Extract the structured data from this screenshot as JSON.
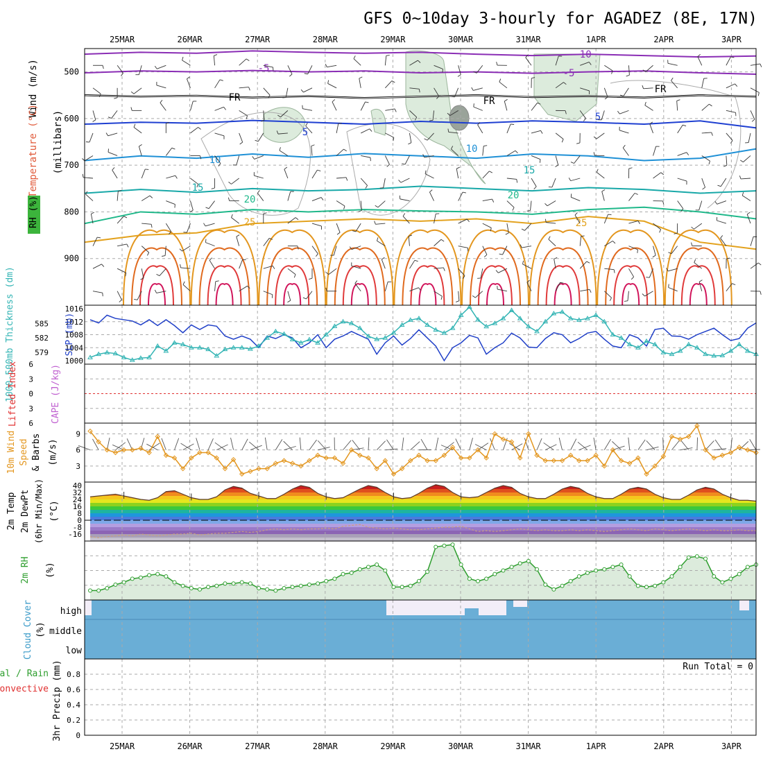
{
  "title": "GFS 0~10day 3-hourly for AGADEZ (8E, 17N)",
  "dates": [
    "25MAR",
    "26MAR",
    "27MAR",
    "28MAR",
    "29MAR",
    "30MAR",
    "31MAR",
    "1APR",
    "2APR",
    "3APR"
  ],
  "colors": {
    "grid": "#aaaaaa",
    "frame": "#000000",
    "rh_fill": "#dcebdc",
    "rh_line": "#2e9e2e",
    "cloud": "#6aaed6",
    "cloud_gap": "#f3eef8",
    "thickness": "#32b4b4",
    "slp": "#1f3fc8",
    "wind10": "#e3961e",
    "lifted": "#e03030"
  },
  "chart_data": [
    {
      "type": "line",
      "panel": "upper-air",
      "ylabel_parts": [
        "Wind (m/s)",
        "Temperature (°C)",
        "RH (%)",
        "(millibars)"
      ],
      "y_ticks": [
        500,
        600,
        700,
        800,
        900
      ],
      "ylim": [
        1000,
        450
      ],
      "series": [
        {
          "name": "-10",
          "level": [
            462,
            458,
            460,
            455,
            458,
            460,
            458,
            462,
            465,
            462,
            465,
            468,
            466
          ]
        },
        {
          "name": "-5",
          "level": [
            502,
            498,
            500,
            497,
            500,
            498,
            502,
            500,
            503,
            500,
            498,
            502,
            505
          ]
        },
        {
          "name": "FR",
          "level": [
            550,
            553,
            551,
            555,
            552,
            556,
            553,
            550,
            554,
            552,
            555,
            550,
            553
          ]
        },
        {
          "name": "5",
          "level": [
            612,
            608,
            610,
            604,
            608,
            612,
            606,
            610,
            605,
            608,
            612,
            605,
            620
          ]
        },
        {
          "name": "10",
          "level": [
            690,
            680,
            685,
            676,
            683,
            675,
            680,
            685,
            676,
            680,
            690,
            685,
            665
          ]
        },
        {
          "name": "15",
          "level": [
            760,
            752,
            758,
            750,
            755,
            752,
            745,
            750,
            755,
            748,
            752,
            760,
            755
          ]
        },
        {
          "name": "20",
          "level": [
            825,
            800,
            805,
            795,
            800,
            795,
            798,
            800,
            805,
            795,
            790,
            800,
            815
          ]
        },
        {
          "name": "25",
          "level": [
            865,
            850,
            845,
            825,
            820,
            815,
            820,
            815,
            825,
            810,
            820,
            865,
            880
          ]
        }
      ],
      "labels": [
        {
          "text": "-10",
          "at": "1APR"
        },
        {
          "text": "-5",
          "at": "25MAR"
        },
        {
          "text": "-5",
          "at": "31MAR"
        },
        {
          "text": "FR",
          "at": "27MAR"
        },
        {
          "text": "FR",
          "at": "30MAR"
        },
        {
          "text": "FR",
          "at": "1APR"
        },
        {
          "text": "5",
          "at": "27MAR"
        },
        {
          "text": "5",
          "at": "1APR"
        },
        {
          "text": "10",
          "at": "26MAR"
        },
        {
          "text": "10",
          "at": "30MAR"
        },
        {
          "text": "15",
          "at": "26MAR"
        },
        {
          "text": "15",
          "at": "31MAR"
        },
        {
          "text": "20",
          "at": "27MAR"
        },
        {
          "text": "20",
          "at": "31MAR"
        },
        {
          "text": "25",
          "at": "27MAR"
        },
        {
          "text": "25",
          "at": "1APR"
        }
      ]
    },
    {
      "type": "line",
      "panel": "thickness-slp",
      "ylabel_left": "1000-500mb Thickness (dm)",
      "ylabel_right": "SLP (mb)",
      "left_ticks": [
        579,
        582,
        585
      ],
      "right_ticks": [
        1000,
        1004,
        1008,
        1012,
        1016
      ],
      "slp_range": [
        1000,
        1016
      ],
      "series": [
        {
          "name": "SLP",
          "values": [
            1012.6,
            1011.6,
            1014,
            1013,
            1012.6,
            1012.2,
            1011,
            1012.6,
            1010.8,
            1012.6,
            1010.8,
            1008.6,
            1011,
            1009.6,
            1011,
            1010.6,
            1007.6,
            1006.6,
            1007.6,
            1006.6,
            1004,
            1007.6,
            1006.8,
            1008,
            1007,
            1004,
            1005.5,
            1008,
            1004,
            1006.6,
            1007.6,
            1009,
            1007.8,
            1006.6,
            1002,
            1005.5,
            1007.6,
            1004.8,
            1006.8,
            1009.5,
            1007,
            1004.5,
            1000,
            1004,
            1005.5,
            1007.8,
            1007,
            1002,
            1004,
            1005.5,
            1008.5,
            1007,
            1004.2,
            1004,
            1006.8,
            1008.6,
            1008,
            1005.5,
            1006.8,
            1008.5,
            1009,
            1006.6,
            1004.5,
            1004,
            1008,
            1007,
            1004.5,
            1009.6,
            1010,
            1007.6,
            1007.5,
            1006.6,
            1008,
            1009,
            1010,
            1008,
            1006.2,
            1006.8,
            1010,
            1011.6
          ]
        },
        {
          "name": "Thickness",
          "values": [
            1001,
            1002,
            1002.5,
            1002.2,
            1001,
            1000.2,
            1000.8,
            1001,
            1004.5,
            1003,
            1005.5,
            1005,
            1004,
            1004,
            1003.5,
            1001.5,
            1003.5,
            1004,
            1004,
            1003.6,
            1004.5,
            1007,
            1009,
            1008.2,
            1006.5,
            1005.5,
            1006.5,
            1005.5,
            1008,
            1010.6,
            1012,
            1011.5,
            1010,
            1007.5,
            1006.6,
            1007,
            1008.6,
            1011,
            1012.5,
            1013,
            1011,
            1009.5,
            1008.5,
            1010,
            1014,
            1016.5,
            1012.6,
            1010.5,
            1011.5,
            1013,
            1015.5,
            1013,
            1010.5,
            1009,
            1012,
            1014.5,
            1015,
            1013,
            1012.5,
            1013,
            1014,
            1012,
            1008,
            1007,
            1005,
            1004,
            1006,
            1005,
            1002.5,
            1002,
            1003,
            1005,
            1004,
            1002,
            1001.5,
            1001.6,
            1003,
            1005,
            1003,
            1002
          ]
        }
      ]
    },
    {
      "type": "line",
      "panel": "lifted-index",
      "ylabel_left": "Lifted Index",
      "ylabel_right": "CAPE (J/kg)",
      "y_ticks": [
        -6,
        -3,
        0,
        3,
        6
      ],
      "ylim": [
        -6,
        6
      ]
    },
    {
      "type": "line",
      "panel": "wind10m",
      "ylabel_parts": [
        "10m Wind",
        "Speed",
        "& Barbs",
        "(m/s)"
      ],
      "y_ticks": [
        3,
        6,
        9
      ],
      "ylim": [
        0,
        11
      ],
      "series": [
        {
          "name": "10m Wind Speed",
          "values": [
            9.5,
            7.5,
            6,
            5.5,
            6,
            6,
            6.3,
            5.5,
            8.5,
            5,
            4.5,
            2.5,
            4.5,
            5.5,
            5.5,
            4.5,
            2.5,
            4.2,
            1.5,
            2,
            2.5,
            2.5,
            3.5,
            4,
            3.5,
            3,
            4,
            5,
            4.5,
            4.5,
            3.5,
            6,
            5,
            4.5,
            2.5,
            4,
            1.5,
            2.5,
            4,
            5,
            4,
            4,
            5,
            6.5,
            4.5,
            4.5,
            6,
            4.5,
            9,
            8,
            7.5,
            4.5,
            9,
            5,
            4,
            4,
            4,
            5,
            4,
            4,
            5,
            3,
            6,
            4,
            3.5,
            4.5,
            1.5,
            3,
            4.8,
            8.5,
            8,
            8.5,
            10.5,
            6,
            4.5,
            5,
            5.5,
            6.5,
            6,
            5.5
          ]
        }
      ]
    },
    {
      "type": "area",
      "panel": "temp2m",
      "ylabel_parts": [
        "2m Temp",
        "2m DewPt",
        "(6hr Min/Max)",
        "(°C)"
      ],
      "y_ticks": [
        -16,
        -8,
        0,
        8,
        16,
        24,
        32,
        40
      ],
      "ylim": [
        -24,
        44
      ],
      "series": [
        {
          "name": "Temp",
          "values": [
            27,
            28,
            29,
            30,
            28,
            26,
            24,
            23,
            26,
            33,
            34,
            30,
            26,
            24,
            24,
            27,
            35,
            39,
            37,
            31,
            28,
            25,
            25,
            30,
            36,
            40,
            38,
            31,
            27,
            25,
            26,
            31,
            36,
            40,
            38,
            32,
            27,
            25,
            26,
            31,
            37,
            41,
            39,
            32,
            27,
            26,
            27,
            32,
            37,
            40,
            38,
            31,
            27,
            25,
            25,
            30,
            36,
            39,
            37,
            31,
            27,
            25,
            25,
            30,
            36,
            38,
            36,
            30,
            26,
            24,
            24,
            29,
            35,
            38,
            36,
            30,
            26,
            23,
            23,
            22
          ]
        },
        {
          "name": "DewPt",
          "values": [
            -19,
            -20,
            -19,
            -18,
            -17,
            -18,
            -16,
            -17,
            -18,
            -17,
            -16,
            -16,
            -15,
            -17,
            -16,
            -15,
            -15,
            -14,
            -13,
            -14,
            -13,
            -11,
            -10,
            -11,
            -10,
            -11,
            -10,
            -10,
            -9,
            -10,
            -7,
            -6,
            -5,
            -8,
            -9,
            -10,
            -9,
            -10,
            -11,
            -11,
            -10,
            -9,
            -8,
            -8,
            -7,
            -10,
            -13,
            -12,
            -13,
            -12,
            -11,
            -10,
            -11,
            -12,
            -11,
            -12,
            -12,
            -11,
            -12,
            -11,
            -12,
            -13,
            -12,
            -11,
            -10,
            -11,
            -12,
            -10,
            -11,
            -12,
            -11,
            -10,
            -11,
            -12,
            -11,
            -12,
            -12,
            -11,
            -12,
            -12
          ]
        }
      ]
    },
    {
      "type": "area",
      "panel": "rh2m",
      "ylabel_parts": [
        "2m RH",
        "(%)"
      ],
      "ylim": [
        0,
        50
      ],
      "series": [
        {
          "name": "2m RH",
          "values": [
            8,
            8,
            10,
            13,
            15,
            18,
            19,
            21,
            22,
            20,
            15,
            12,
            10,
            9,
            11,
            12,
            14,
            14,
            15,
            14,
            10,
            9,
            8,
            10,
            11,
            12,
            13,
            14,
            16,
            18,
            22,
            23,
            26,
            28,
            30,
            25,
            11,
            11,
            12,
            16,
            24,
            45,
            46,
            47,
            30,
            18,
            16,
            18,
            22,
            25,
            28,
            31,
            33,
            26,
            13,
            9,
            12,
            16,
            20,
            23,
            25,
            26,
            28,
            30,
            20,
            12,
            11,
            12,
            15,
            20,
            28,
            36,
            37,
            35,
            20,
            15,
            18,
            22,
            28,
            30,
            35
          ]
        }
      ]
    },
    {
      "type": "area",
      "panel": "cloud",
      "ylabel_parts": [
        "Cloud Cover",
        "(%)"
      ],
      "category_labels": [
        "high",
        "middle",
        "low"
      ],
      "series": [
        {
          "name": "high",
          "values": [
            0.6,
            0.6,
            0.6,
            0.6,
            0.6,
            0.6,
            0.6,
            0.6,
            0.6,
            0.6,
            0.6,
            0.6,
            0.6,
            0.6,
            0.6,
            0.6,
            0.6,
            0.6,
            0.6,
            0.6,
            0.6,
            0.6,
            0.6,
            0.6,
            0.6,
            0.6,
            0.6,
            0.6,
            0.6,
            0.6,
            0.6,
            0.6,
            0.6,
            0.6,
            0.6,
            0.6,
            0.6,
            0.6,
            0.6,
            0.6,
            0.6,
            0.6,
            0.6,
            0.6,
            0.6,
            0.6,
            0.6,
            0.6,
            0.6,
            0.6,
            0.6,
            0.6,
            0.6,
            0.6,
            0.6,
            0.6,
            0.6,
            0.6,
            0.6,
            0.6,
            0.6,
            0.6,
            0.6,
            0.6,
            0.6,
            0.6,
            0.6,
            0.6,
            0.6,
            0.6,
            0.6,
            0.6,
            0.6,
            0.6,
            0.6,
            0.6,
            0.6,
            0.6,
            0.6,
            0.6
          ]
        }
      ]
    },
    {
      "type": "bar",
      "panel": "precip",
      "ylabel_parts": [
        "Total / Rain",
        "Convective",
        "3hr Precip (mm)"
      ],
      "y_ticks": [
        0,
        0.2,
        0.4,
        0.6,
        0.8
      ],
      "ylim": [
        0,
        1
      ],
      "values": [],
      "annotation": "Run Total = 0"
    }
  ]
}
